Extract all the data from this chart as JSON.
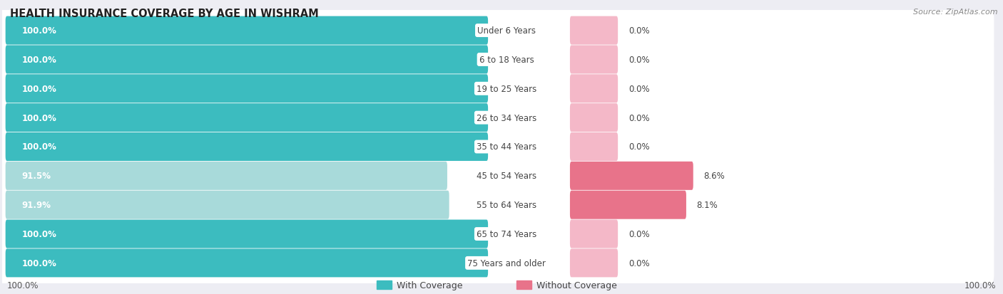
{
  "title": "HEALTH INSURANCE COVERAGE BY AGE IN WISHRAM",
  "source": "Source: ZipAtlas.com",
  "categories": [
    "Under 6 Years",
    "6 to 18 Years",
    "19 to 25 Years",
    "26 to 34 Years",
    "35 to 44 Years",
    "45 to 54 Years",
    "55 to 64 Years",
    "65 to 74 Years",
    "75 Years and older"
  ],
  "with_coverage": [
    100.0,
    100.0,
    100.0,
    100.0,
    100.0,
    91.5,
    91.9,
    100.0,
    100.0
  ],
  "without_coverage": [
    0.0,
    0.0,
    0.0,
    0.0,
    0.0,
    8.6,
    8.1,
    0.0,
    0.0
  ],
  "color_with_full": "#3cbcbf",
  "color_with_partial": "#a8dada",
  "color_without_large": "#e8738a",
  "color_without_small": "#f4b8c8",
  "background_color": "#ededf3",
  "row_bg_color": "#ffffff",
  "title_fontsize": 10.5,
  "label_fontsize": 8.5,
  "cat_fontsize": 8.5,
  "legend_fontsize": 9,
  "source_fontsize": 8,
  "axis_label_fontsize": 8.5
}
